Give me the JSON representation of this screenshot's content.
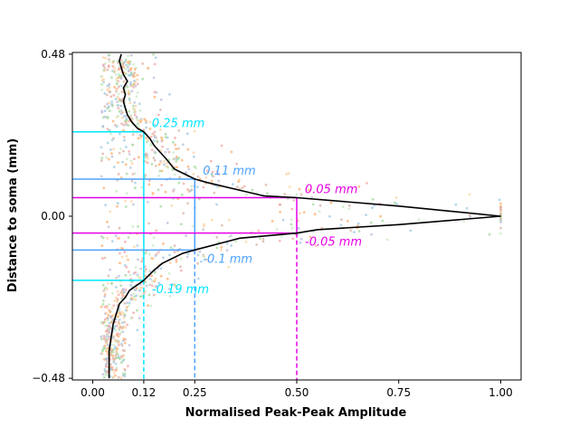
{
  "chart_data": {
    "type": "line",
    "xlabel": "Normalised Peak-Peak Amplitude",
    "ylabel": "Distance to soma (mm)",
    "xlim": [
      -0.05,
      1.05
    ],
    "ylim": [
      -0.485,
      0.485
    ],
    "xticks": [
      0.0,
      0.125,
      0.25,
      0.5,
      0.75,
      1.0
    ],
    "xtick_labels": [
      "0.00",
      "0.12",
      "0.25",
      "0.50",
      "0.75",
      "1.00"
    ],
    "yticks": [
      -0.48,
      0.0,
      0.48
    ],
    "ytick_labels": [
      "−0.48",
      "0.00",
      "0.48"
    ],
    "grid": false,
    "series": [
      {
        "color": "#000000",
        "points": [
          [
            0.07,
            0.48
          ],
          [
            0.065,
            0.46
          ],
          [
            0.07,
            0.44
          ],
          [
            0.075,
            0.42
          ],
          [
            0.085,
            0.4
          ],
          [
            0.075,
            0.38
          ],
          [
            0.08,
            0.36
          ],
          [
            0.075,
            0.34
          ],
          [
            0.08,
            0.32
          ],
          [
            0.085,
            0.3
          ],
          [
            0.095,
            0.28
          ],
          [
            0.11,
            0.26
          ],
          [
            0.125,
            0.25
          ],
          [
            0.14,
            0.23
          ],
          [
            0.15,
            0.21
          ],
          [
            0.165,
            0.19
          ],
          [
            0.18,
            0.17
          ],
          [
            0.2,
            0.14
          ],
          [
            0.25,
            0.11
          ],
          [
            0.28,
            0.1
          ],
          [
            0.42,
            0.06
          ],
          [
            0.5,
            0.055
          ],
          [
            0.75,
            0.03
          ],
          [
            1.0,
            0.0
          ],
          [
            0.75,
            -0.025
          ],
          [
            0.55,
            -0.04
          ],
          [
            0.5,
            -0.05
          ],
          [
            0.36,
            -0.065
          ],
          [
            0.25,
            -0.1
          ],
          [
            0.22,
            -0.11
          ],
          [
            0.17,
            -0.14
          ],
          [
            0.15,
            -0.16
          ],
          [
            0.125,
            -0.19
          ],
          [
            0.09,
            -0.22
          ],
          [
            0.08,
            -0.24
          ],
          [
            0.065,
            -0.26
          ],
          [
            0.06,
            -0.28
          ],
          [
            0.055,
            -0.3
          ],
          [
            0.05,
            -0.32
          ],
          [
            0.045,
            -0.36
          ],
          [
            0.04,
            -0.4
          ],
          [
            0.04,
            -0.44
          ],
          [
            0.04,
            -0.48
          ]
        ]
      }
    ],
    "crossings": [
      {
        "label": "0.25 mm",
        "y": 0.25,
        "x": 0.125,
        "color": "#00e5ff",
        "side": "above"
      },
      {
        "label": "-0.19 mm",
        "y": -0.19,
        "x": 0.125,
        "color": "#00e5ff",
        "side": "below"
      },
      {
        "label": "0.11 mm",
        "y": 0.11,
        "x": 0.25,
        "color": "#4da3ff",
        "side": "above"
      },
      {
        "label": "-0.1 mm",
        "y": -0.1,
        "x": 0.25,
        "color": "#4da3ff",
        "side": "below"
      },
      {
        "label": "0.05 mm",
        "y": 0.055,
        "x": 0.5,
        "color": "#e600e6",
        "side": "above"
      },
      {
        "label": "-0.05 mm",
        "y": -0.05,
        "x": 0.5,
        "color": "#e600e6",
        "side": "below"
      }
    ],
    "scatter_colors": [
      "#9ecae1",
      "#a1d99b",
      "#fdae6b",
      "#f4a6a6",
      "#bcbddc",
      "#c7e9c0",
      "#fdd0a2",
      "#d9b3a6"
    ]
  }
}
